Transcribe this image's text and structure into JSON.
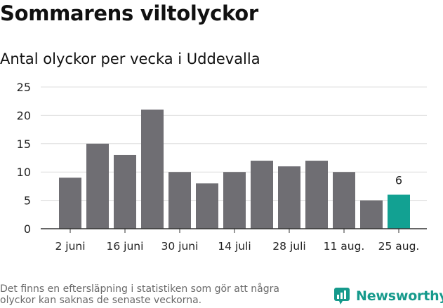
{
  "chart_data": {
    "type": "bar",
    "title": "Sommarens viltolyckor",
    "subtitle": "Antal olyckor per vecka i Uddevalla",
    "values": [
      9,
      15,
      13,
      21,
      10,
      8,
      10,
      12,
      11,
      12,
      10,
      5,
      6
    ],
    "x_tick_labels": [
      "2 juni",
      "16 juni",
      "30 juni",
      "14 juli",
      "28 juli",
      "11 aug.",
      "25 aug."
    ],
    "y_ticks": [
      0,
      5,
      10,
      15,
      20,
      25
    ],
    "ylim": [
      0,
      25
    ],
    "grid": true,
    "highlight": {
      "index": 12,
      "label": "6"
    },
    "colors": {
      "bar": "#6f6e73",
      "highlight": "#12a192",
      "grid": "#dddddd",
      "axis": "#333333"
    }
  },
  "footnote": "Det finns en eftersläpning i statistiken som gör att några olyckor kan saknas de senaste veckorna.",
  "brand": {
    "name": "Newsworthy",
    "icon": "newsworthy-logo-icon",
    "color": "#169a8c"
  }
}
